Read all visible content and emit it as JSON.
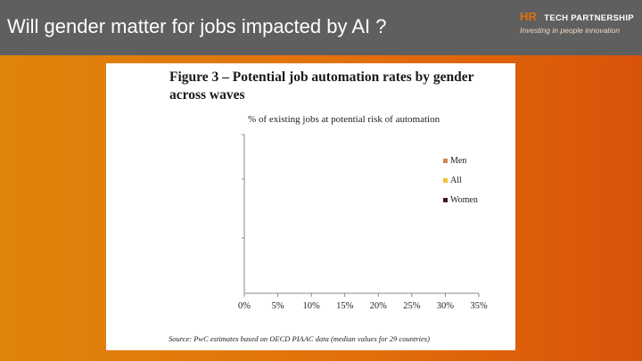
{
  "slide": {
    "title": "Will gender matter for jobs impacted by AI ?"
  },
  "logo": {
    "mark": "HR",
    "name": "TECH PARTNERSHIP",
    "tagline": "Investing in people innovation"
  },
  "figure": {
    "title": "Figure 3 – Potential job automation rates by gender across waves",
    "source": "Source: PwC estimates based on OECD PIAAC data (median values for 29 countries)"
  },
  "chart_data": {
    "type": "bar",
    "orientation": "horizontal",
    "title": "Figure 3 – Potential job automation rates by gender across waves",
    "subtitle": "% of existing jobs at potential risk of automation",
    "categories": [],
    "series": [
      {
        "name": "Men",
        "color": "#d4874c",
        "values": []
      },
      {
        "name": "All",
        "color": "#f2c23a",
        "values": []
      },
      {
        "name": "Women",
        "color": "#3a1f12",
        "values": []
      }
    ],
    "xlim": [
      0,
      35
    ],
    "x_ticks": [
      "0%",
      "5%",
      "10%",
      "15%",
      "20%",
      "25%",
      "30%",
      "35%"
    ],
    "legend_position": "right",
    "grid": false
  }
}
